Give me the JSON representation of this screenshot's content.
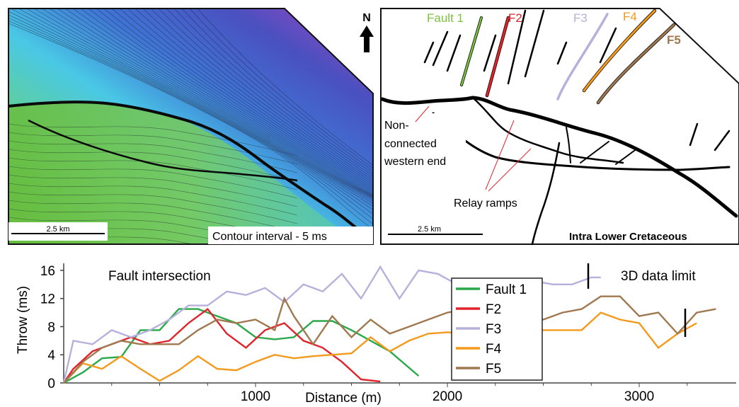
{
  "left_map": {
    "scale_label": "2.5 km",
    "contour_label": "Contour interval - 5 ms"
  },
  "north_label": "N",
  "right_map": {
    "fault_labels": [
      {
        "text": "Fault 1",
        "color": "#7dc242"
      },
      {
        "text": "F2",
        "color": "#e0242b"
      },
      {
        "text": "F3",
        "color": "#b8b0dc"
      },
      {
        "text": "F4",
        "color": "#f39a1c"
      },
      {
        "text": "F5",
        "color": "#a07850"
      }
    ],
    "annot_nonconnected": [
      "Non-",
      "connected",
      "western end"
    ],
    "annot_relay": "Relay ramps",
    "annot_color": "#e0242b",
    "scale_label": "2.5 km",
    "horizon_label": "Intra Lower Cretaceous"
  },
  "chart_data": {
    "type": "line",
    "xlabel": "Distance (m)",
    "ylabel": "Throw (ms)",
    "xlim": [
      0,
      3450
    ],
    "ylim": [
      0,
      17
    ],
    "xticks": [
      1000,
      2000,
      3000
    ],
    "yticks": [
      0,
      4,
      8,
      12,
      16
    ],
    "annotations": [
      "Fault intersection",
      "3D data limit"
    ],
    "legend_position": "center",
    "series": [
      {
        "name": "Fault 1",
        "color": "#2aa84a",
        "x": [
          0,
          100,
          200,
          300,
          400,
          500,
          600,
          700,
          800,
          900,
          1000,
          1100,
          1200,
          1300,
          1400,
          1500,
          1600,
          1700,
          1850
        ],
        "y": [
          0,
          1.5,
          3.5,
          3.7,
          7.5,
          7.5,
          10.5,
          10.5,
          9.5,
          8.5,
          6.5,
          6.2,
          6.5,
          8.8,
          8.8,
          7.5,
          6.0,
          4.5,
          1.0
        ]
      },
      {
        "name": "F2",
        "color": "#e0242b",
        "x": [
          0,
          50,
          150,
          250,
          350,
          450,
          550,
          650,
          750,
          850,
          950,
          1050,
          1150,
          1250,
          1350,
          1450,
          1550,
          1650
        ],
        "y": [
          0,
          2,
          4.5,
          5.5,
          6.5,
          5.5,
          6.0,
          8.5,
          10.5,
          7.0,
          5.0,
          7.5,
          8.5,
          6.0,
          5.0,
          3.0,
          0.5,
          0.2
        ]
      },
      {
        "name": "F3",
        "color": "#b8b0dc",
        "x": [
          0,
          50,
          150,
          250,
          350,
          450,
          550,
          650,
          750,
          850,
          950,
          1050,
          1150,
          1250,
          1350,
          1450,
          1550,
          1650,
          1750,
          1850,
          1950,
          2050,
          2150,
          2250,
          2350,
          2450,
          2550,
          2650,
          2750,
          2800
        ],
        "y": [
          0,
          6,
          5.5,
          7.5,
          6.5,
          7.5,
          9.0,
          11.0,
          11.0,
          13.0,
          12.5,
          13.5,
          11.5,
          14.0,
          13.0,
          15.5,
          12.0,
          16.5,
          12.0,
          16.0,
          15.5,
          14.0,
          11.0,
          12.0,
          12.5,
          14.5,
          14.0,
          14.0,
          15.0,
          15.0
        ]
      },
      {
        "name": "F4",
        "color": "#f39a1c",
        "x": [
          0,
          100,
          200,
          300,
          400,
          500,
          600,
          700,
          800,
          900,
          1000,
          1100,
          1200,
          1300,
          1400,
          1500,
          1600,
          1700,
          1800,
          1900,
          2000,
          2100,
          2200,
          2300,
          2400,
          2500,
          2600,
          2700,
          2800,
          2900,
          3000,
          3100,
          3200,
          3300
        ],
        "y": [
          0,
          2.8,
          2.0,
          3.8,
          2.0,
          0.3,
          1.8,
          3.8,
          2.0,
          1.8,
          3.0,
          4.0,
          3.5,
          3.8,
          4.0,
          4.2,
          6.5,
          4.5,
          6.0,
          7.0,
          7.2,
          7.0,
          8.0,
          9.0,
          7.5,
          7.5,
          7.5,
          7.5,
          10.0,
          9.0,
          8.5,
          5.0,
          7.0,
          8.5
        ]
      },
      {
        "name": "F5",
        "color": "#a07850",
        "x": [
          0,
          100,
          200,
          300,
          400,
          500,
          600,
          700,
          800,
          900,
          1000,
          1100,
          1150,
          1200,
          1300,
          1400,
          1500,
          1600,
          1700,
          1800,
          1900,
          2000,
          2100,
          2200,
          2300,
          2400,
          2500,
          2600,
          2700,
          2800,
          2900,
          3000,
          3100,
          3200,
          3300,
          3400
        ],
        "y": [
          0,
          3.0,
          5.0,
          6.0,
          5.5,
          5.5,
          5.5,
          7.5,
          9.0,
          8.5,
          9.0,
          7.5,
          12.0,
          9.5,
          5.5,
          9.5,
          6.5,
          9.0,
          7.0,
          8.0,
          9.0,
          10.0,
          10.5,
          9.5,
          10.0,
          10.0,
          9.0,
          10.0,
          10.5,
          12.3,
          12.3,
          9.5,
          10.0,
          7.0,
          10.0,
          10.5
        ]
      }
    ]
  }
}
